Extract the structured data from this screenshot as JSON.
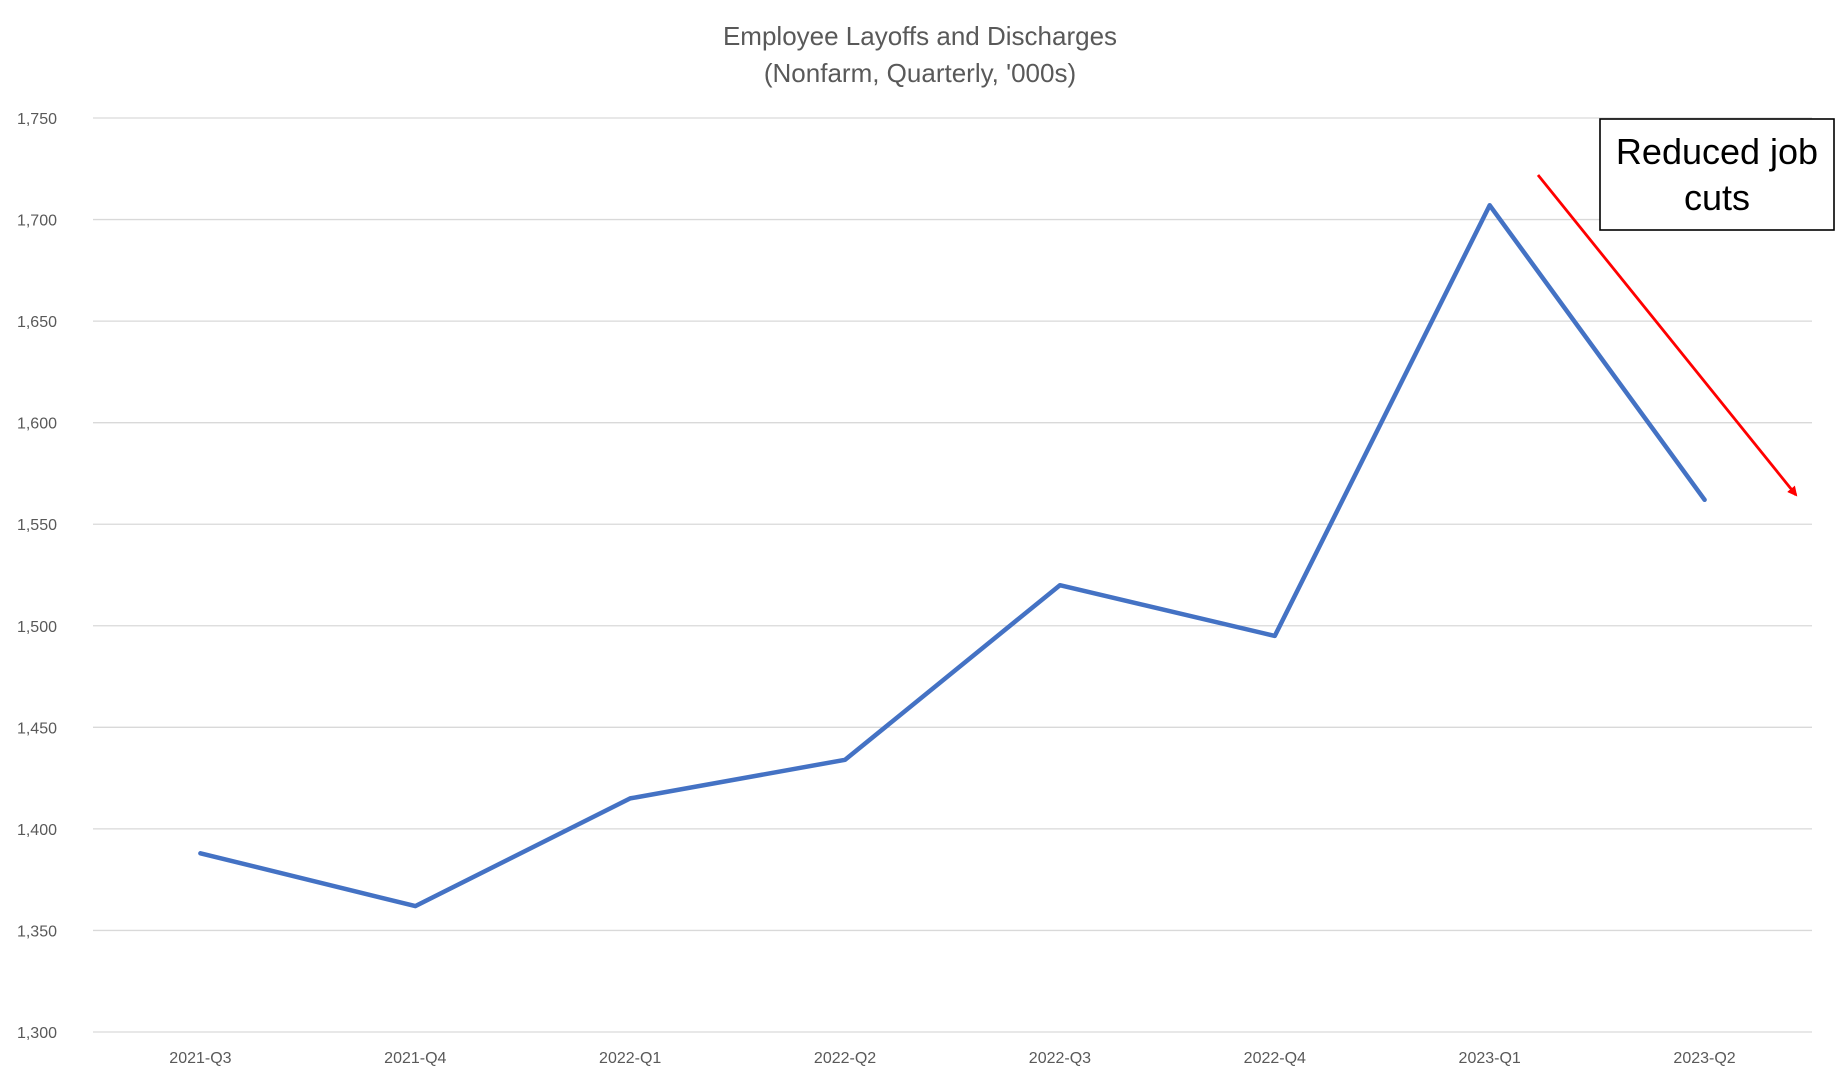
{
  "chart_data": {
    "type": "line",
    "title": "Employee Layoffs and Discharges",
    "subtitle": "(Nonfarm, Quarterly, '000s)",
    "xlabel": "",
    "ylabel": "",
    "categories": [
      "2021-Q3",
      "2021-Q4",
      "2022-Q1",
      "2022-Q2",
      "2022-Q3",
      "2022-Q4",
      "2023-Q1",
      "2023-Q2"
    ],
    "series": [
      {
        "values": [
          1388,
          1362,
          1415,
          1434,
          1520,
          1495,
          1707,
          1562
        ]
      }
    ],
    "ylim": [
      1300,
      1750
    ],
    "ytick_labels": [
      "1,300",
      "1,350",
      "1,400",
      "1,450",
      "1,500",
      "1,550",
      "1,600",
      "1,650",
      "1,700",
      "1,750"
    ],
    "grid": true,
    "legend": "none",
    "annotation": {
      "lines": [
        "Reduced job",
        "cuts"
      ],
      "arrow_color": "#ff0000"
    },
    "colors": {
      "series": "#4472c4",
      "arrow": "#ff0000",
      "grid": "#d9d9d9",
      "text": "#595959"
    }
  }
}
